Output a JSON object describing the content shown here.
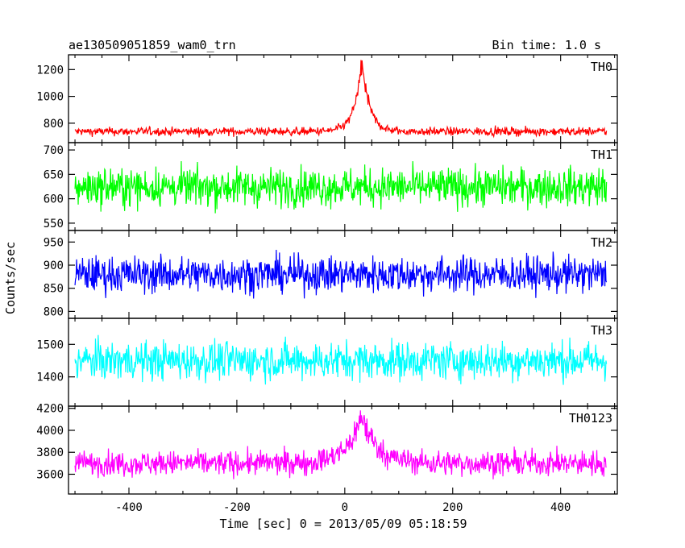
{
  "header": {
    "title": "ae130509051859_wam0_trn",
    "bin_time": "Bin time: 1.0 s"
  },
  "chart_data": {
    "type": "line",
    "title": "ae130509051859_wam0_trn",
    "xlabel": "Time [sec] 0 = 2013/05/09 05:18:59",
    "ylabel": "Counts/sec",
    "xlim": [
      -512,
      505
    ],
    "x_ticks": [
      -400,
      -200,
      0,
      200,
      400
    ],
    "x_data_range": [
      -500,
      485
    ],
    "grid": false,
    "panels": [
      {
        "name": "TH0",
        "color": "#ff0000",
        "ylim": [
          655,
          1310
        ],
        "yticks": [
          800,
          1000,
          1200
        ],
        "baseline": 738,
        "noise": 22,
        "peak": {
          "t": 32,
          "amplitude": 520,
          "width": 14
        }
      },
      {
        "name": "TH1",
        "color": "#00ff00",
        "ylim": [
          535,
          715
        ],
        "yticks": [
          550,
          600,
          650,
          700
        ],
        "baseline": 624,
        "noise": 28,
        "peak": null
      },
      {
        "name": "TH2",
        "color": "#0000ff",
        "ylim": [
          785,
          975
        ],
        "yticks": [
          800,
          850,
          900,
          950
        ],
        "baseline": 880,
        "noise": 28,
        "peak": null
      },
      {
        "name": "TH3",
        "color": "#00ffff",
        "ylim": [
          1310,
          1580
        ],
        "yticks": [
          1400,
          1500
        ],
        "baseline": 1450,
        "noise": 42,
        "peak": null
      },
      {
        "name": "TH0123",
        "color": "#ff00ff",
        "ylim": [
          3420,
          4220
        ],
        "yticks": [
          3600,
          3800,
          4000,
          4200
        ],
        "baseline": 3700,
        "noise": 80,
        "peak": {
          "t": 32,
          "amplitude": 420,
          "width": 28
        }
      }
    ]
  }
}
